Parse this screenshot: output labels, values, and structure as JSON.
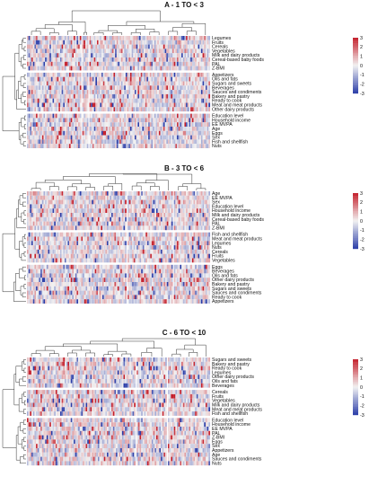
{
  "chart_data": [
    {
      "type": "heatmap",
      "title": "A - 1 TO < 3",
      "column_groups": 3,
      "row_groups": [
        [
          "Legumes",
          "Fruits",
          "Cereals",
          "Vegetables",
          "Milk and dairy products",
          "Cereal-based baby foods",
          "PAL",
          "Z-BMI"
        ],
        [
          "Appetizers",
          "Oils and fats",
          "Sugars and sweets",
          "Beverages",
          "Sauces and condiments",
          "Bakery and pastry",
          "Ready to cook",
          "Meat and meat products",
          "Other dairy products"
        ],
        [
          "Education level",
          "Household income",
          "EE MVPA",
          "Age",
          "Eggs",
          "Sex",
          "Fish and shellfish",
          "Nuts"
        ]
      ],
      "colorbar": {
        "ticks": [
          3,
          2,
          1,
          0,
          -1,
          -2,
          -3
        ],
        "range": [
          -3,
          3
        ],
        "low_color": "#2b3da8",
        "mid_color": "#f2f2f2",
        "high_color": "#c41e2a"
      }
    },
    {
      "type": "heatmap",
      "title": "B - 3 TO < 6",
      "column_groups": 3,
      "row_groups": [
        [
          "Age",
          "EE MVPA",
          "Sex",
          "Education level",
          "Household income",
          "Milk and dairy products",
          "Cereal-based baby foods",
          "PAL",
          "Z-BMI"
        ],
        [
          "Fish and shellfish",
          "Meat and meat products",
          "Legumes",
          "Nuts",
          "Cereals",
          "Fruits",
          "Vegetables"
        ],
        [
          "Eggs",
          "Beverages",
          "Oils and fats",
          "Other dairy products",
          "Bakery and pastry",
          "Sugars and sweets",
          "Sauces and condiments",
          "Ready to cook",
          "Appetizers"
        ]
      ],
      "colorbar": {
        "ticks": [
          3,
          2,
          1,
          0,
          -1,
          -2,
          -3
        ],
        "range": [
          -3,
          3
        ],
        "low_color": "#2b3da8",
        "mid_color": "#f2f2f2",
        "high_color": "#c41e2a"
      }
    },
    {
      "type": "heatmap",
      "title": "C - 6 TO < 10",
      "column_groups": 3,
      "row_groups": [
        [
          "Sugars and sweets",
          "Bakery and pastry",
          "Ready to cook",
          "Legumes",
          "Other dairy products",
          "Oils and fats",
          "Beverages"
        ],
        [
          "Cereals",
          "Fruits",
          "Vegetables",
          "Milk and dairy products",
          "Meat and meat products",
          "Fish and shellfish"
        ],
        [
          "Education level",
          "Household income",
          "EE MVPA",
          "PAL",
          "Z-BMI",
          "Eggs",
          "Sex",
          "Appetizers",
          "Age",
          "Sauces and condiments",
          "Nuts"
        ]
      ],
      "colorbar": {
        "ticks": [
          3,
          2,
          1,
          0,
          -1,
          -2,
          -3
        ],
        "range": [
          -3,
          3
        ],
        "low_color": "#2b3da8",
        "mid_color": "#f2f2f2",
        "high_color": "#c41e2a"
      }
    }
  ]
}
